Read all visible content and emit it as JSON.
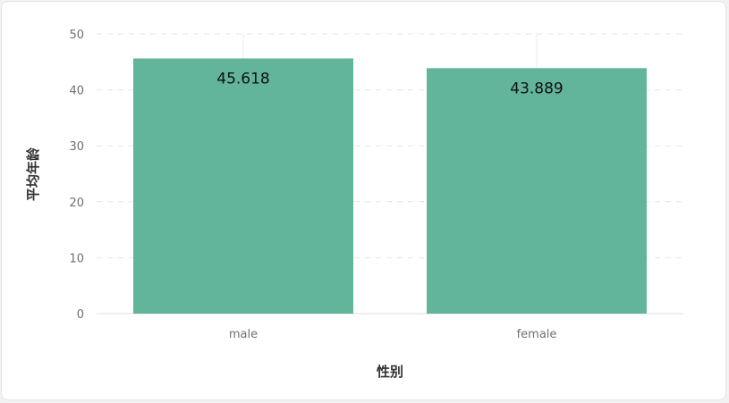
{
  "chart_data": {
    "type": "bar",
    "categories": [
      "male",
      "female"
    ],
    "values": [
      45.618,
      43.889
    ],
    "data_labels": [
      "45.618",
      "43.889"
    ],
    "xlabel": "性别",
    "ylabel": "平均年龄",
    "ylim": [
      0,
      50
    ],
    "yticks": [
      0,
      10,
      20,
      30,
      40,
      50
    ],
    "ytick_labels": [
      "0",
      "10",
      "20",
      "30",
      "40",
      "50"
    ],
    "grid": true,
    "legend": "none",
    "bar_color": "#62b49a"
  }
}
